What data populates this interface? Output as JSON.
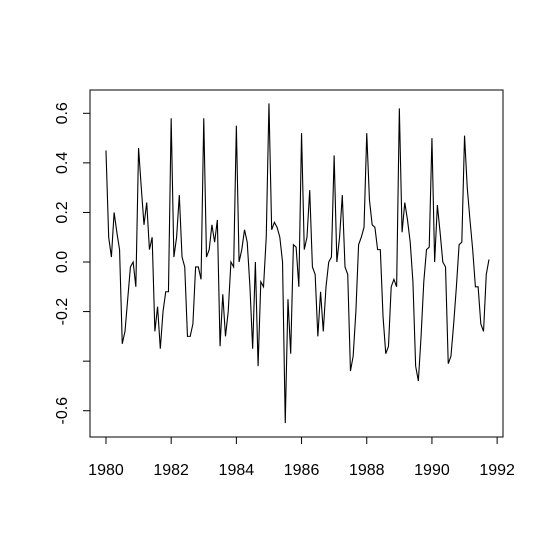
{
  "chart_data": {
    "type": "line",
    "x": [
      1980,
      1980.0833,
      1980.1667,
      1980.25,
      1980.3333,
      1980.4167,
      1980.5,
      1980.5833,
      1980.6667,
      1980.75,
      1980.8333,
      1980.9167,
      1981,
      1981.0833,
      1981.1667,
      1981.25,
      1981.3333,
      1981.4167,
      1981.5,
      1981.5833,
      1981.6667,
      1981.75,
      1981.8333,
      1981.9167,
      1982,
      1982.0833,
      1982.1667,
      1982.25,
      1982.3333,
      1982.4167,
      1982.5,
      1982.5833,
      1982.6667,
      1982.75,
      1982.8333,
      1982.9167,
      1983,
      1983.0833,
      1983.1667,
      1983.25,
      1983.3333,
      1983.4167,
      1983.5,
      1983.5833,
      1983.6667,
      1983.75,
      1983.8333,
      1983.9167,
      1984,
      1984.0833,
      1984.1667,
      1984.25,
      1984.3333,
      1984.4167,
      1984.5,
      1984.5833,
      1984.6667,
      1984.75,
      1984.8333,
      1984.9167,
      1985,
      1985.0833,
      1985.1667,
      1985.25,
      1985.3333,
      1985.4167,
      1985.5,
      1985.5833,
      1985.6667,
      1985.75,
      1985.8333,
      1985.9167,
      1986,
      1986.0833,
      1986.1667,
      1986.25,
      1986.3333,
      1986.4167,
      1986.5,
      1986.5833,
      1986.6667,
      1986.75,
      1986.8333,
      1986.9167,
      1987,
      1987.0833,
      1987.1667,
      1987.25,
      1987.3333,
      1987.4167,
      1987.5,
      1987.5833,
      1987.6667,
      1987.75,
      1987.8333,
      1987.9167,
      1988,
      1988.0833,
      1988.1667,
      1988.25,
      1988.3333,
      1988.4167,
      1988.5,
      1988.5833,
      1988.6667,
      1988.75,
      1988.8333,
      1988.9167,
      1989,
      1989.0833,
      1989.1667,
      1989.25,
      1989.3333,
      1989.4167,
      1989.5,
      1989.5833,
      1989.6667,
      1989.75,
      1989.8333,
      1989.9167,
      1990,
      1990.0833,
      1990.1667,
      1990.25,
      1990.3333,
      1990.4167,
      1990.5,
      1990.5833,
      1990.6667,
      1990.75,
      1990.8333,
      1990.9167,
      1991,
      1991.0833,
      1991.1667,
      1991.25,
      1991.3333,
      1991.4167,
      1991.5,
      1991.5833,
      1991.6667,
      1991.75
    ],
    "values": [
      0.45,
      0.1,
      0.02,
      0.2,
      0.12,
      0.05,
      -0.33,
      -0.28,
      -0.15,
      -0.02,
      0.0,
      -0.1,
      0.46,
      0.3,
      0.15,
      0.24,
      0.05,
      0.1,
      -0.28,
      -0.18,
      -0.35,
      -0.2,
      -0.12,
      -0.12,
      0.58,
      0.02,
      0.1,
      0.27,
      0.02,
      -0.02,
      -0.3,
      -0.3,
      -0.25,
      -0.02,
      -0.02,
      -0.07,
      0.58,
      0.02,
      0.05,
      0.15,
      0.08,
      0.17,
      -0.34,
      -0.13,
      -0.3,
      -0.2,
      0.0,
      -0.02,
      0.55,
      0.0,
      0.05,
      0.13,
      0.08,
      -0.1,
      -0.35,
      0.0,
      -0.42,
      -0.08,
      -0.1,
      0.1,
      0.64,
      0.13,
      0.16,
      0.14,
      0.1,
      0.0,
      -0.65,
      -0.15,
      -0.37,
      0.07,
      0.06,
      -0.1,
      0.52,
      0.05,
      0.1,
      0.29,
      -0.02,
      -0.05,
      -0.3,
      -0.12,
      -0.28,
      -0.1,
      0.0,
      0.02,
      0.43,
      0.0,
      0.1,
      0.27,
      -0.02,
      -0.05,
      -0.44,
      -0.38,
      -0.2,
      0.07,
      0.1,
      0.14,
      0.52,
      0.25,
      0.15,
      0.14,
      0.05,
      0.05,
      -0.22,
      -0.37,
      -0.34,
      -0.1,
      -0.07,
      -0.1,
      0.62,
      0.12,
      0.24,
      0.17,
      0.08,
      -0.08,
      -0.42,
      -0.48,
      -0.3,
      -0.08,
      0.05,
      0.06,
      0.5,
      0.0,
      0.23,
      0.12,
      0.0,
      -0.02,
      -0.41,
      -0.38,
      -0.25,
      -0.1,
      0.07,
      0.08,
      0.51,
      0.3,
      0.17,
      0.05,
      -0.1,
      -0.1,
      -0.25,
      -0.28,
      -0.05,
      0.01
    ],
    "color": "#000000",
    "xlim": [
      1979.51,
      1992.18
    ],
    "xticks": [
      1980,
      1982,
      1984,
      1986,
      1988,
      1990,
      1992
    ],
    "ylim": [
      -0.706,
      0.694
    ],
    "yticks": [
      {
        "value": -0.6,
        "label": "-0.6"
      },
      {
        "value": -0.4,
        "label": null
      },
      -0.2,
      {
        "value": 0,
        "label": "0.0"
      },
      0.2,
      0.4,
      0.6
    ]
  }
}
